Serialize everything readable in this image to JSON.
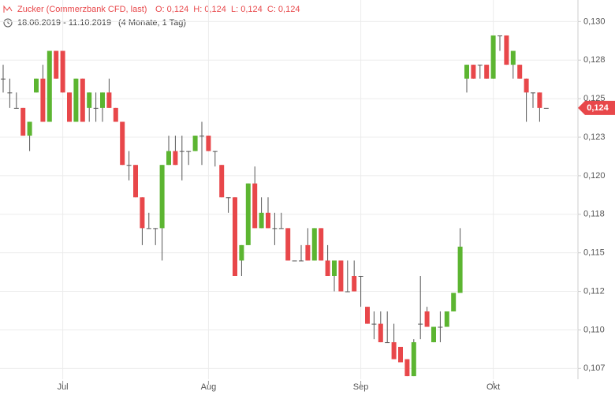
{
  "chart_data": {
    "type": "candlestick",
    "title": "Zucker (Commerzbank CFD, last)",
    "ohlc_text": "O: 0,124  H: 0,124  L: 0,124  C: 0,124",
    "date_range": "18.06.2019 - 11.10.2019",
    "period": "(4 Monate, 1 Tag)",
    "categories": [
      null,
      null,
      null,
      null,
      null,
      null,
      null,
      null,
      null,
      "Jul",
      null,
      null,
      null,
      null,
      null,
      null,
      null,
      null,
      null,
      null,
      null,
      null,
      null,
      null,
      null,
      null,
      null,
      null,
      null,
      null,
      null,
      "Aug",
      null,
      null,
      null,
      null,
      null,
      null,
      null,
      null,
      null,
      null,
      null,
      null,
      null,
      null,
      null,
      null,
      null,
      null,
      null,
      null,
      null,
      null,
      "Sep",
      null,
      null,
      null,
      null,
      null,
      null,
      null,
      null,
      null,
      null,
      null,
      null,
      null,
      null,
      null,
      null,
      null,
      null,
      null,
      "Okt",
      null,
      null,
      null,
      null,
      null,
      null,
      null,
      null
    ],
    "open": [
      0.1263,
      0.1254,
      0.1244,
      0.1244,
      0.1226,
      0.1254,
      0.1263,
      0.1235,
      0.1281,
      0.1281,
      0.1254,
      0.1235,
      0.1263,
      0.1244,
      0.1244,
      0.1244,
      0.1254,
      0.1244,
      0.1235,
      0.1207,
      0.1207,
      0.1186,
      0.1166,
      0.1166,
      0.1166,
      0.1207,
      0.1216,
      0.1216,
      0.1216,
      0.1216,
      0.1226,
      0.1226,
      0.1216,
      0.1207,
      0.1186,
      0.1186,
      0.1145,
      0.1155,
      0.1195,
      0.1166,
      0.1176,
      0.1166,
      0.1166,
      0.1166,
      0.1145,
      0.1145,
      0.1155,
      0.1145,
      0.1166,
      0.1145,
      0.1135,
      0.1145,
      0.1125,
      0.1135,
      0.1135,
      0.1115,
      0.1104,
      0.1104,
      0.1092,
      0.1092,
      0.1089,
      0.1081,
      0.107,
      0.1104,
      0.1112,
      0.1092,
      0.1102,
      0.1102,
      0.1112,
      0.1124,
      0.1263,
      0.1272,
      0.1272,
      0.1272,
      0.1263,
      0.1291,
      0.1291,
      0.1272,
      0.1272,
      0.1263,
      0.1254,
      0.1254,
      0.1244
    ],
    "high": [
      0.1272,
      0.1263,
      0.1254,
      0.1244,
      0.1235,
      0.1263,
      0.1272,
      0.1281,
      0.1281,
      0.1281,
      0.1254,
      0.1263,
      0.1263,
      0.1254,
      0.1254,
      0.1254,
      0.1263,
      0.1244,
      0.1235,
      0.1216,
      0.1207,
      0.1186,
      0.1176,
      0.1166,
      0.1207,
      0.1226,
      0.1226,
      0.1226,
      0.1216,
      0.1226,
      0.1235,
      0.1226,
      0.1216,
      0.1207,
      0.1186,
      0.1186,
      0.1155,
      0.1195,
      0.1206,
      0.1186,
      0.1186,
      0.1176,
      0.1176,
      0.1166,
      0.1145,
      0.1155,
      0.1166,
      0.1166,
      0.1166,
      0.1155,
      0.1145,
      0.1145,
      0.1145,
      0.1145,
      0.1135,
      0.1115,
      0.1112,
      0.1112,
      0.1112,
      0.1104,
      0.1089,
      0.1081,
      0.1094,
      0.1135,
      0.1115,
      0.1102,
      0.1112,
      0.1112,
      0.1124,
      0.1166,
      0.1272,
      0.1272,
      0.1272,
      0.1272,
      0.1291,
      0.1291,
      0.1291,
      0.1281,
      0.1272,
      0.1263,
      0.1254,
      0.1254,
      0.1244
    ],
    "low": [
      0.1254,
      0.1244,
      0.1244,
      0.1226,
      0.1216,
      0.1254,
      0.1235,
      0.1235,
      0.1263,
      0.1254,
      0.1235,
      0.1235,
      0.1235,
      0.1235,
      0.1235,
      0.1235,
      0.1244,
      0.1235,
      0.1207,
      0.1197,
      0.1186,
      0.1155,
      0.1166,
      0.1155,
      0.1145,
      0.1207,
      0.1207,
      0.1197,
      0.1207,
      0.1216,
      0.1207,
      0.1216,
      0.1206,
      0.1186,
      0.1176,
      0.1135,
      0.1135,
      0.1155,
      0.1166,
      0.1166,
      0.1166,
      0.1155,
      0.1166,
      0.1145,
      0.1145,
      0.1145,
      0.1145,
      0.1145,
      0.1145,
      0.1135,
      0.1125,
      0.1125,
      0.1125,
      0.1125,
      0.1115,
      0.1104,
      0.1094,
      0.1092,
      0.1092,
      0.1081,
      0.1079,
      0.107,
      0.107,
      0.1094,
      0.1102,
      0.1092,
      0.1092,
      0.1102,
      0.1112,
      0.1124,
      0.1254,
      0.1263,
      0.1263,
      0.1263,
      0.1263,
      0.1281,
      0.1272,
      0.1263,
      0.1263,
      0.1235,
      0.1244,
      0.1235,
      0.1244
    ],
    "close": [
      0.1263,
      0.1254,
      0.1244,
      0.1226,
      0.1235,
      0.1263,
      0.1235,
      0.1281,
      0.1263,
      0.1254,
      0.1235,
      0.1263,
      0.1235,
      0.1254,
      0.1244,
      0.1254,
      0.1244,
      0.1235,
      0.1207,
      0.1207,
      0.1186,
      0.1166,
      0.1166,
      0.1166,
      0.1207,
      0.1216,
      0.1207,
      0.1216,
      0.1216,
      0.1226,
      0.1226,
      0.1216,
      0.1216,
      0.1186,
      0.1186,
      0.1135,
      0.1155,
      0.1195,
      0.1166,
      0.1176,
      0.1166,
      0.1166,
      0.1166,
      0.1145,
      0.1145,
      0.1145,
      0.1145,
      0.1166,
      0.1145,
      0.1135,
      0.1145,
      0.1125,
      0.1125,
      0.1125,
      0.1135,
      0.1104,
      0.1104,
      0.1092,
      0.1092,
      0.1081,
      0.1079,
      0.107,
      0.1092,
      0.1104,
      0.1102,
      0.1102,
      0.1102,
      0.1112,
      0.1124,
      0.1154,
      0.1272,
      0.1263,
      0.1272,
      0.1263,
      0.1291,
      0.1291,
      0.1272,
      0.1281,
      0.1263,
      0.1254,
      0.1254,
      0.1244,
      0.1244
    ],
    "up_color": "#5cb531",
    "down_color": "#e8474a",
    "doji_color": "#555555",
    "ylim": [
      0.1068,
      0.1314
    ],
    "yticks": [
      {
        "value": 0.13,
        "label": "0,130"
      },
      {
        "value": 0.1275,
        "label": "0,128"
      },
      {
        "value": 0.125,
        "label": "0,125"
      },
      {
        "value": 0.1225,
        "label": "0,123"
      },
      {
        "value": 0.12,
        "label": "0,120"
      },
      {
        "value": 0.1175,
        "label": "0,118"
      },
      {
        "value": 0.115,
        "label": "0,115"
      },
      {
        "value": 0.1125,
        "label": "0,112"
      },
      {
        "value": 0.11,
        "label": "0,110"
      },
      {
        "value": 0.1075,
        "label": "0,107"
      }
    ],
    "last_price": {
      "value": 0.1244,
      "label": "0,124"
    },
    "grid": true
  }
}
